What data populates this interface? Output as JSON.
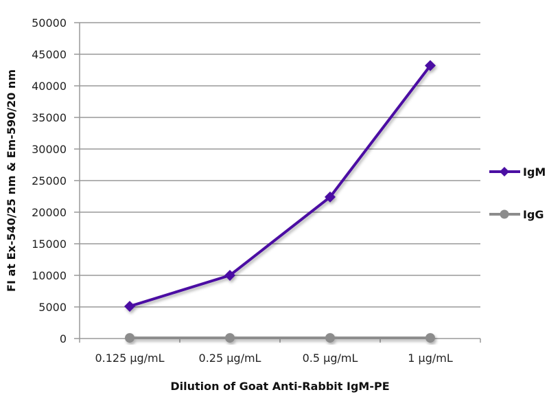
{
  "chart_data": {
    "type": "line",
    "title": "",
    "xlabel": "Dilution of Goat Anti-Rabbit IgM-PE",
    "ylabel": "FI at Ex-540/25 nm & Em-590/20 nm",
    "categories": [
      "0.125 µg/mL",
      "0.25 µg/mL",
      "0.5 µg/mL",
      "1 µg/mL"
    ],
    "ylim": [
      0,
      50000
    ],
    "yticks": [
      0,
      5000,
      10000,
      15000,
      20000,
      25000,
      30000,
      35000,
      40000,
      45000,
      50000
    ],
    "grid": true,
    "legend": "right",
    "series": [
      {
        "name": "IgM",
        "values": [
          5100,
          10000,
          22400,
          43200
        ],
        "color": "#4b0fa3",
        "marker": "diamond"
      },
      {
        "name": "IgG",
        "values": [
          100,
          100,
          100,
          100
        ],
        "color": "#8c8c8c",
        "marker": "circle"
      }
    ]
  }
}
